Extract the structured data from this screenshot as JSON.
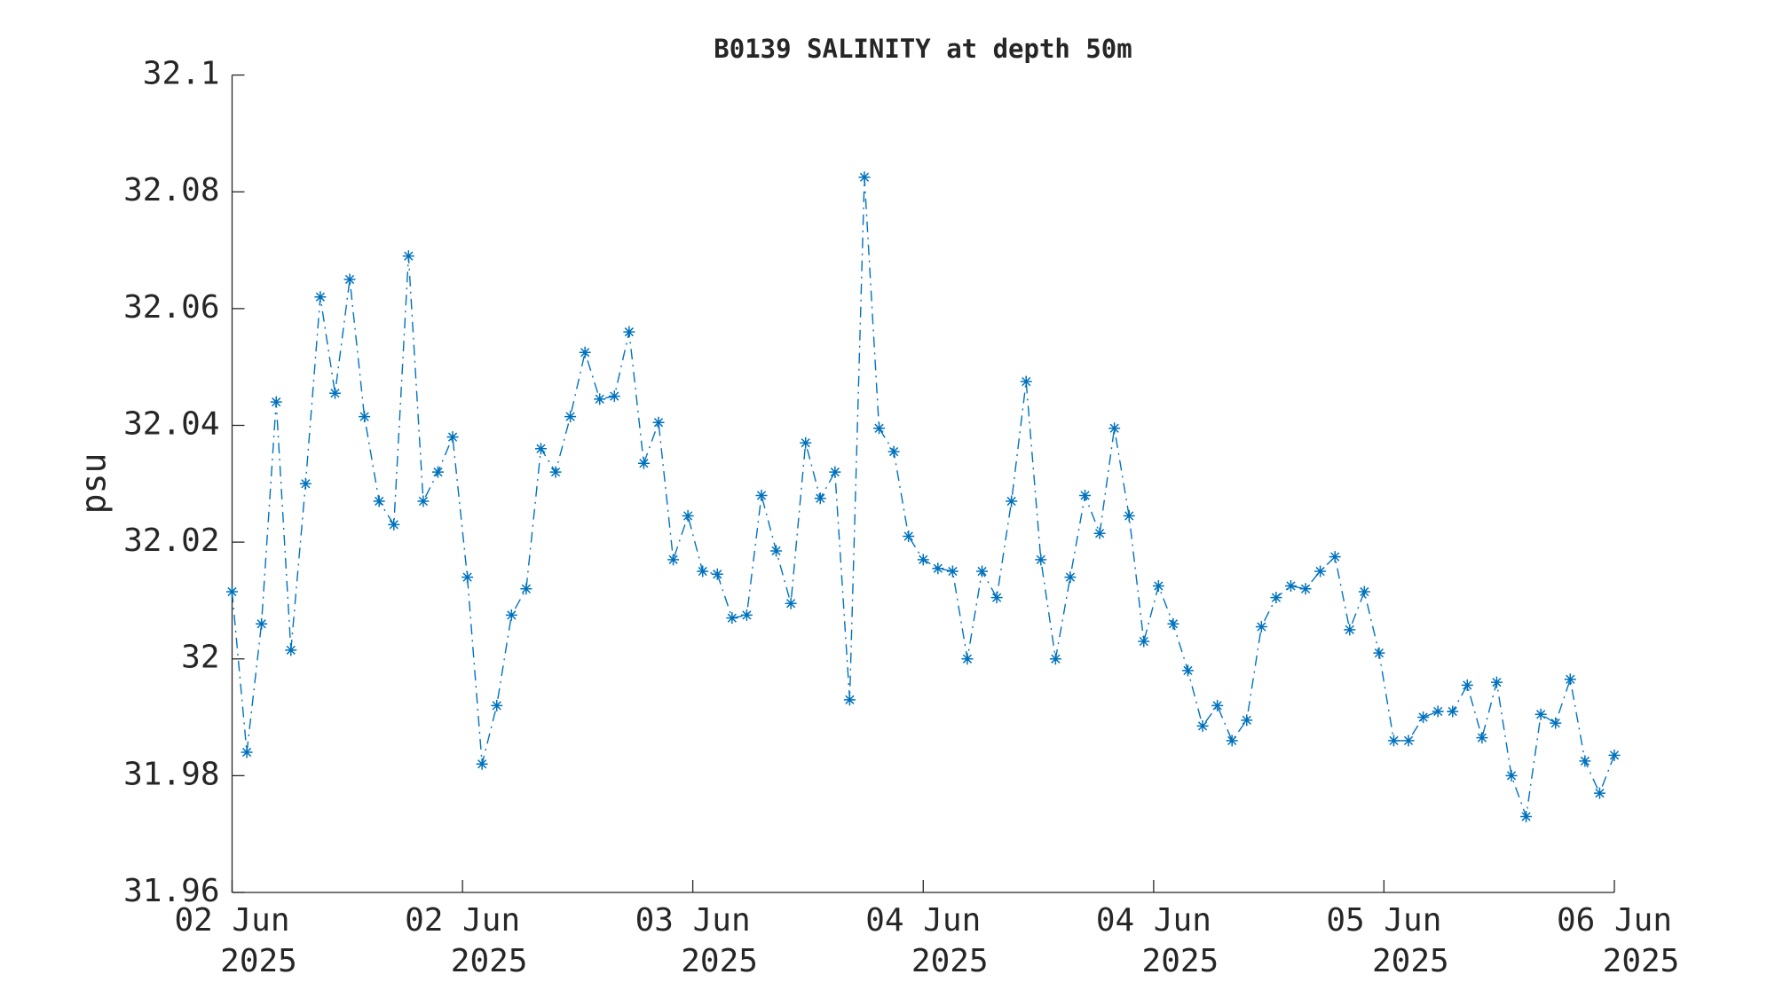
{
  "chart_data": {
    "type": "line",
    "title": "B0139 SALINITY at depth 50m",
    "y_label": "psu",
    "x": [
      0,
      1,
      2,
      3,
      4,
      5,
      6,
      7,
      8,
      9,
      10,
      11,
      12,
      13,
      14,
      15,
      16,
      17,
      18,
      19,
      20,
      21,
      22,
      23,
      24,
      25,
      26,
      27,
      28,
      29,
      30,
      31,
      32,
      33,
      34,
      35,
      36,
      37,
      38,
      39,
      40,
      41,
      42,
      43,
      44,
      45,
      46,
      47,
      48,
      49,
      50,
      51,
      52,
      53,
      54,
      55,
      56,
      57,
      58,
      59,
      60,
      61,
      62,
      63,
      64,
      65,
      66,
      67,
      68,
      69,
      70,
      71,
      72,
      73,
      74,
      75,
      76,
      77,
      78,
      79,
      80,
      81,
      82,
      83,
      84,
      85,
      86,
      87,
      88,
      89,
      90,
      91,
      92,
      93,
      94
    ],
    "series": [
      {
        "name": "SALINITY",
        "color": "#0072bd",
        "values": [
          32.0115,
          31.984,
          32.006,
          32.044,
          32.0015,
          32.03,
          32.062,
          32.0455,
          32.065,
          32.0415,
          32.027,
          32.023,
          32.069,
          32.027,
          32.032,
          32.038,
          32.014,
          31.982,
          31.992,
          32.0075,
          32.012,
          32.036,
          32.032,
          32.0415,
          32.0525,
          32.0445,
          32.045,
          32.056,
          32.0335,
          32.0405,
          32.017,
          32.0245,
          32.015,
          32.0145,
          32.007,
          32.0075,
          32.028,
          32.0185,
          32.0095,
          32.037,
          32.0275,
          32.032,
          31.993,
          32.0825,
          32.0395,
          32.0355,
          32.021,
          32.017,
          32.0155,
          32.015,
          32.0,
          32.015,
          32.0105,
          32.027,
          32.0475,
          32.017,
          32.0,
          32.014,
          32.028,
          32.0215,
          32.0395,
          32.0245,
          32.003,
          32.0125,
          32.006,
          31.998,
          31.9885,
          31.992,
          31.986,
          31.9895,
          32.0055,
          32.0105,
          32.0125,
          32.012,
          32.015,
          32.0175,
          32.005,
          32.0115,
          32.001,
          31.986,
          31.986,
          31.99,
          31.991,
          31.991,
          31.9955,
          31.9865,
          31.996,
          31.98,
          31.973,
          31.9905,
          31.989,
          31.9965,
          31.9825,
          31.977,
          31.9835
        ]
      }
    ],
    "xlim": [
      0,
      94
    ],
    "xticks": [
      {
        "value": 0,
        "label": [
          "02 Jun",
          "2025"
        ]
      },
      {
        "value": 15.67,
        "label": [
          "02 Jun",
          "2025"
        ]
      },
      {
        "value": 31.33,
        "label": [
          "03 Jun",
          "2025"
        ]
      },
      {
        "value": 47,
        "label": [
          "04 Jun",
          "2025"
        ]
      },
      {
        "value": 62.67,
        "label": [
          "04 Jun",
          "2025"
        ]
      },
      {
        "value": 78.33,
        "label": [
          "05 Jun",
          "2025"
        ]
      },
      {
        "value": 94,
        "label": [
          "06 Jun",
          "2025"
        ]
      }
    ],
    "ylim": [
      31.96,
      32.1
    ],
    "yticks": [
      31.96,
      31.98,
      32,
      32.02,
      32.04,
      32.06,
      32.08,
      32.1
    ],
    "line_style": "dash-dot",
    "marker": "asterisk",
    "grid": false
  }
}
